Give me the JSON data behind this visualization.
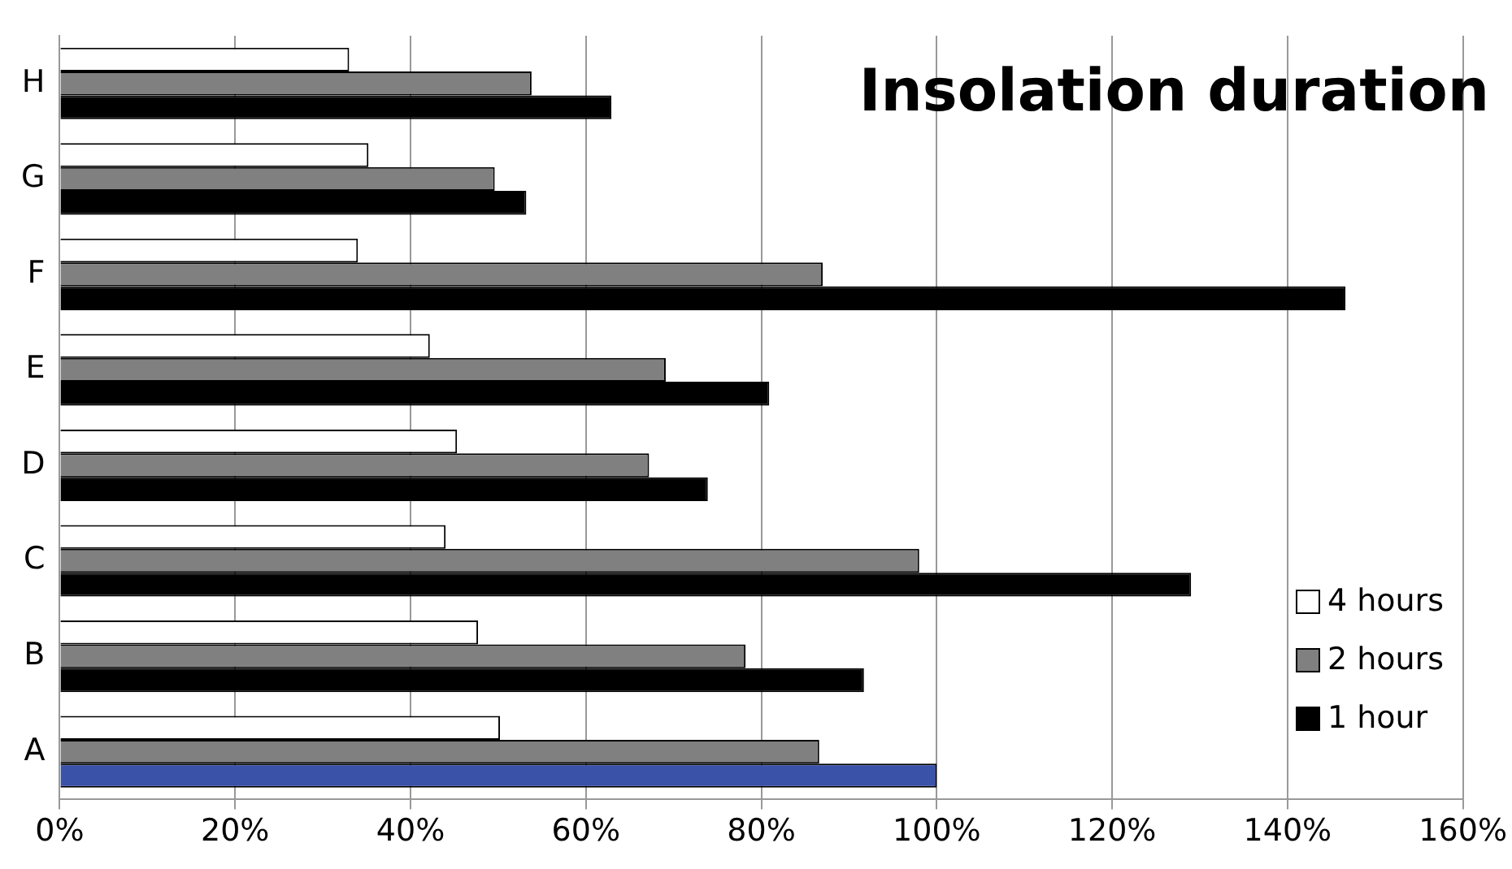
{
  "chart_data": {
    "type": "bar",
    "orientation": "horizontal",
    "title": "Insolation duration",
    "categories": [
      "H",
      "G",
      "F",
      "E",
      "D",
      "C",
      "B",
      "A"
    ],
    "series": [
      {
        "name": "4 hours",
        "color": "#ffffff",
        "values": [
          33,
          35.2,
          34,
          42.2,
          45.3,
          44,
          47.7,
          50.2
        ]
      },
      {
        "name": "2 hours",
        "color": "#808080",
        "values": [
          53.8,
          49.6,
          87,
          69.1,
          67.2,
          98,
          78.2,
          86.6
        ]
      },
      {
        "name": "1 hour",
        "color": "#000000",
        "colors": [
          "#000000",
          "#000000",
          "#000000",
          "#000000",
          "#000000",
          "#000000",
          "#000000",
          "#3a52a8"
        ],
        "values": [
          62.9,
          53.2,
          146.6,
          80.9,
          73.9,
          129,
          91.7,
          100
        ]
      }
    ],
    "xlim": [
      0,
      160
    ],
    "xticks": [
      {
        "value": 0,
        "label": "0%"
      },
      {
        "value": 20,
        "label": "20%"
      },
      {
        "value": 40,
        "label": "40%"
      },
      {
        "value": 60,
        "label": "60%"
      },
      {
        "value": 80,
        "label": "80%"
      },
      {
        "value": 100,
        "label": "100%"
      },
      {
        "value": 120,
        "label": "120%"
      },
      {
        "value": 140,
        "label": "140%"
      },
      {
        "value": 160,
        "label": "160%"
      }
    ],
    "grid": "x",
    "legend": "bottom right"
  }
}
